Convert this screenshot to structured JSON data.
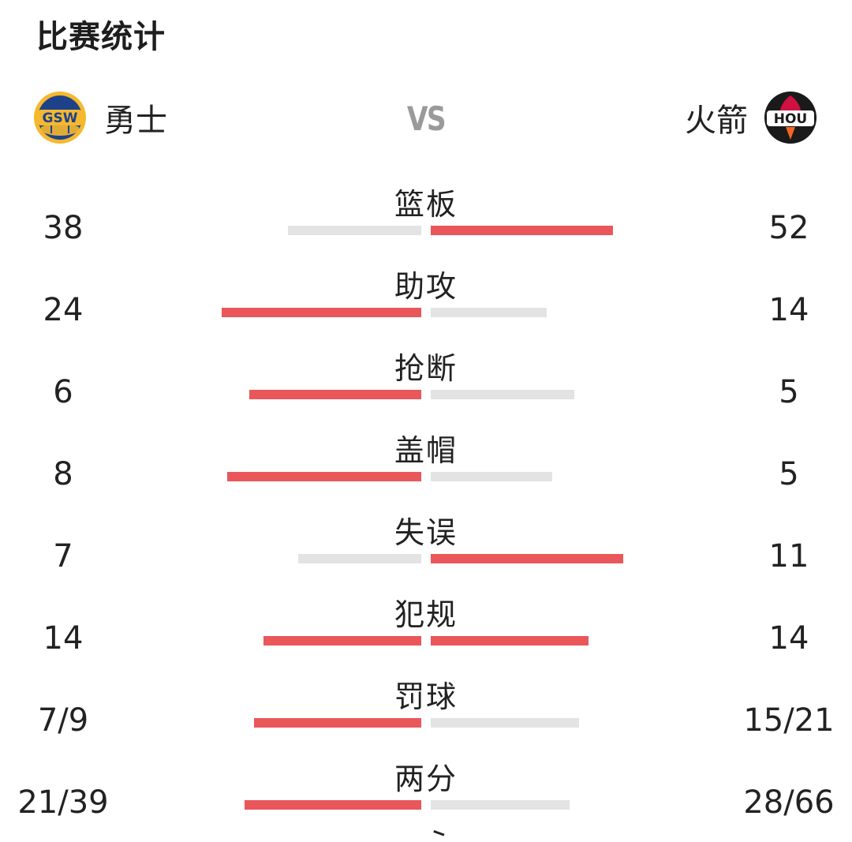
{
  "header": {
    "title": "比赛统计"
  },
  "teams": {
    "home": {
      "name": "勇士",
      "logo_text": "GSW",
      "logo_colors": {
        "ring": "#f5b82e",
        "fill": "#1d428a"
      }
    },
    "away": {
      "name": "火箭",
      "logo_text": "HOU",
      "logo_colors": {
        "ring": "#1a1a1a",
        "fill": "#ce1141"
      }
    },
    "vs_label": "VS"
  },
  "colors": {
    "lead_bar": "#e9575b",
    "trail_bar": "#e3e3e3"
  },
  "stats": [
    {
      "label": "篮板",
      "home": "38",
      "away": "52",
      "home_share": 0.422,
      "away_share": 0.578,
      "leader": "away"
    },
    {
      "label": "助攻",
      "home": "24",
      "away": "14",
      "home_share": 0.632,
      "away_share": 0.368,
      "leader": "home"
    },
    {
      "label": "抢断",
      "home": "6",
      "away": "5",
      "home_share": 0.545,
      "away_share": 0.455,
      "leader": "home"
    },
    {
      "label": "盖帽",
      "home": "8",
      "away": "5",
      "home_share": 0.615,
      "away_share": 0.385,
      "leader": "home"
    },
    {
      "label": "失误",
      "home": "7",
      "away": "11",
      "home_share": 0.389,
      "away_share": 0.611,
      "leader": "away"
    },
    {
      "label": "犯规",
      "home": "14",
      "away": "14",
      "home_share": 0.5,
      "away_share": 0.5,
      "leader": "both"
    },
    {
      "label": "罚球",
      "home": "7/9",
      "away": "15/21",
      "home_share": 0.53,
      "away_share": 0.47,
      "leader": "home"
    },
    {
      "label": "两分",
      "home": "21/39",
      "away": "28/66",
      "home_share": 0.56,
      "away_share": 0.44,
      "leader": "home"
    }
  ]
}
